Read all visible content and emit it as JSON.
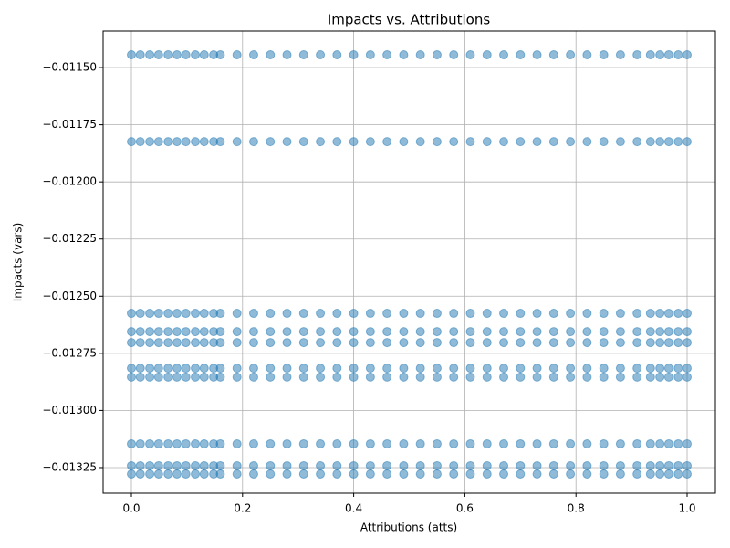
{
  "chart_data": {
    "type": "scatter",
    "title": "Impacts vs. Attributions",
    "x_label": "Attributions (atts)",
    "y_label": "Impacts (vars)",
    "color": "#1f77b4",
    "grid": true,
    "xlim": [
      -0.0509,
      1.0509
    ],
    "ylim": [
      -0.013362,
      -0.01134
    ],
    "xticks": [
      {
        "value": 0,
        "label": "0.0"
      },
      0.2,
      0.4,
      0.6,
      0.8,
      {
        "value": 1,
        "label": "1.0"
      }
    ],
    "yticks": [
      {
        "value": -0.0115,
        "label": "−0.01150"
      },
      {
        "value": -0.01175,
        "label": "−0.01175"
      },
      {
        "value": -0.012,
        "label": "−0.01200"
      },
      {
        "value": -0.01225,
        "label": "−0.01225"
      },
      {
        "value": -0.0125,
        "label": "−0.01250"
      },
      {
        "value": -0.01275,
        "label": "−0.01275"
      },
      {
        "value": -0.013,
        "label": "−0.01300"
      },
      {
        "value": -0.01325,
        "label": "−0.01325"
      }
    ],
    "x": [
      0,
      0.016,
      0.033,
      0.049,
      0.066,
      0.082,
      0.098,
      0.115,
      0.131,
      0.148,
      0.16,
      0.19,
      0.22,
      0.25,
      0.28,
      0.31,
      0.34,
      0.37,
      0.4,
      0.43,
      0.46,
      0.49,
      0.52,
      0.55,
      0.58,
      0.61,
      0.64,
      0.67,
      0.7,
      0.73,
      0.76,
      0.79,
      0.82,
      0.85,
      0.88,
      0.91,
      0.934,
      0.951,
      0.967,
      0.984,
      1
    ],
    "series": [
      {
        "values": [
          -0.011444,
          -0.011444,
          -0.011444,
          -0.011444,
          -0.011444,
          -0.011444,
          -0.011444,
          -0.011444,
          -0.011444,
          -0.011444,
          -0.011444,
          -0.011444,
          -0.011444,
          -0.011444,
          -0.011444,
          -0.011444,
          -0.011444,
          -0.011444,
          -0.011444,
          -0.011444,
          -0.011444,
          -0.011444,
          -0.011444,
          -0.011444,
          -0.011444,
          -0.011444,
          -0.011444,
          -0.011444,
          -0.011444,
          -0.011444,
          -0.011444,
          -0.011444,
          -0.011444,
          -0.011444,
          -0.011444,
          -0.011444,
          -0.011444,
          -0.011444,
          -0.011444,
          -0.011444,
          -0.011444
        ]
      },
      {
        "values": [
          -0.011824,
          -0.011824,
          -0.011824,
          -0.011824,
          -0.011824,
          -0.011824,
          -0.011824,
          -0.011824,
          -0.011824,
          -0.011824,
          -0.011824,
          -0.011824,
          -0.011824,
          -0.011824,
          -0.011824,
          -0.011824,
          -0.011824,
          -0.011824,
          -0.011824,
          -0.011824,
          -0.011824,
          -0.011824,
          -0.011824,
          -0.011824,
          -0.011824,
          -0.011824,
          -0.011824,
          -0.011824,
          -0.011824,
          -0.011824,
          -0.011824,
          -0.011824,
          -0.011824,
          -0.011824,
          -0.011824,
          -0.011824,
          -0.011824,
          -0.011824,
          -0.011824,
          -0.011824,
          -0.011824
        ]
      },
      {
        "values": [
          -0.012575,
          -0.012575,
          -0.012575,
          -0.012575,
          -0.012575,
          -0.012575,
          -0.012575,
          -0.012575,
          -0.012575,
          -0.012575,
          -0.012575,
          -0.012575,
          -0.012575,
          -0.012575,
          -0.012575,
          -0.012575,
          -0.012575,
          -0.012575,
          -0.012575,
          -0.012575,
          -0.012575,
          -0.012575,
          -0.012575,
          -0.012575,
          -0.012575,
          -0.012575,
          -0.012575,
          -0.012575,
          -0.012575,
          -0.012575,
          -0.012575,
          -0.012575,
          -0.012575,
          -0.012575,
          -0.012575,
          -0.012575,
          -0.012575,
          -0.012575,
          -0.012575,
          -0.012575,
          -0.012575
        ]
      },
      {
        "values": [
          -0.012655,
          -0.012655,
          -0.012655,
          -0.012655,
          -0.012655,
          -0.012655,
          -0.012655,
          -0.012655,
          -0.012655,
          -0.012655,
          -0.012655,
          -0.012655,
          -0.012655,
          -0.012655,
          -0.012655,
          -0.012655,
          -0.012655,
          -0.012655,
          -0.012655,
          -0.012655,
          -0.012655,
          -0.012655,
          -0.012655,
          -0.012655,
          -0.012655,
          -0.012655,
          -0.012655,
          -0.012655,
          -0.012655,
          -0.012655,
          -0.012655,
          -0.012655,
          -0.012655,
          -0.012655,
          -0.012655,
          -0.012655,
          -0.012655,
          -0.012655,
          -0.012655,
          -0.012655,
          -0.012655
        ]
      },
      {
        "values": [
          -0.012703,
          -0.012703,
          -0.012703,
          -0.012703,
          -0.012703,
          -0.012703,
          -0.012703,
          -0.012703,
          -0.012703,
          -0.012703,
          -0.012703,
          -0.012703,
          -0.012703,
          -0.012703,
          -0.012703,
          -0.012703,
          -0.012703,
          -0.012703,
          -0.012703,
          -0.012703,
          -0.012703,
          -0.012703,
          -0.012703,
          -0.012703,
          -0.012703,
          -0.012703,
          -0.012703,
          -0.012703,
          -0.012703,
          -0.012703,
          -0.012703,
          -0.012703,
          -0.012703,
          -0.012703,
          -0.012703,
          -0.012703,
          -0.012703,
          -0.012703,
          -0.012703,
          -0.012703,
          -0.012703
        ]
      },
      {
        "values": [
          -0.012815,
          -0.012815,
          -0.012815,
          -0.012815,
          -0.012815,
          -0.012815,
          -0.012815,
          -0.012815,
          -0.012815,
          -0.012815,
          -0.012815,
          -0.012815,
          -0.012815,
          -0.012815,
          -0.012815,
          -0.012815,
          -0.012815,
          -0.012815,
          -0.012815,
          -0.012815,
          -0.012815,
          -0.012815,
          -0.012815,
          -0.012815,
          -0.012815,
          -0.012815,
          -0.012815,
          -0.012815,
          -0.012815,
          -0.012815,
          -0.012815,
          -0.012815,
          -0.012815,
          -0.012815,
          -0.012815,
          -0.012815,
          -0.012815,
          -0.012815,
          -0.012815,
          -0.012815,
          -0.012815
        ]
      },
      {
        "values": [
          -0.012854,
          -0.012854,
          -0.012854,
          -0.012854,
          -0.012854,
          -0.012854,
          -0.012854,
          -0.012854,
          -0.012854,
          -0.012854,
          -0.012854,
          -0.012854,
          -0.012854,
          -0.012854,
          -0.012854,
          -0.012854,
          -0.012854,
          -0.012854,
          -0.012854,
          -0.012854,
          -0.012854,
          -0.012854,
          -0.012854,
          -0.012854,
          -0.012854,
          -0.012854,
          -0.012854,
          -0.012854,
          -0.012854,
          -0.012854,
          -0.012854,
          -0.012854,
          -0.012854,
          -0.012854,
          -0.012854,
          -0.012854,
          -0.012854,
          -0.012854,
          -0.012854,
          -0.012854,
          -0.012854
        ]
      },
      {
        "values": [
          -0.013146,
          -0.013146,
          -0.013146,
          -0.013146,
          -0.013146,
          -0.013146,
          -0.013146,
          -0.013146,
          -0.013146,
          -0.013146,
          -0.013146,
          -0.013146,
          -0.013146,
          -0.013146,
          -0.013146,
          -0.013146,
          -0.013146,
          -0.013146,
          -0.013146,
          -0.013146,
          -0.013146,
          -0.013146,
          -0.013146,
          -0.013146,
          -0.013146,
          -0.013146,
          -0.013146,
          -0.013146,
          -0.013146,
          -0.013146,
          -0.013146,
          -0.013146,
          -0.013146,
          -0.013146,
          -0.013146,
          -0.013146,
          -0.013146,
          -0.013146,
          -0.013146,
          -0.013146,
          -0.013146
        ]
      },
      {
        "values": [
          -0.013242,
          -0.013242,
          -0.013242,
          -0.013242,
          -0.013242,
          -0.013242,
          -0.013242,
          -0.013242,
          -0.013242,
          -0.013242,
          -0.013242,
          -0.013242,
          -0.013242,
          -0.013242,
          -0.013242,
          -0.013242,
          -0.013242,
          -0.013242,
          -0.013242,
          -0.013242,
          -0.013242,
          -0.013242,
          -0.013242,
          -0.013242,
          -0.013242,
          -0.013242,
          -0.013242,
          -0.013242,
          -0.013242,
          -0.013242,
          -0.013242,
          -0.013242,
          -0.013242,
          -0.013242,
          -0.013242,
          -0.013242,
          -0.013242,
          -0.013242,
          -0.013242,
          -0.013242,
          -0.013242
        ]
      },
      {
        "values": [
          -0.013278,
          -0.013278,
          -0.013278,
          -0.013278,
          -0.013278,
          -0.013278,
          -0.013278,
          -0.013278,
          -0.013278,
          -0.013278,
          -0.013278,
          -0.013278,
          -0.013278,
          -0.013278,
          -0.013278,
          -0.013278,
          -0.013278,
          -0.013278,
          -0.013278,
          -0.013278,
          -0.013278,
          -0.013278,
          -0.013278,
          -0.013278,
          -0.013278,
          -0.013278,
          -0.013278,
          -0.013278,
          -0.013278,
          -0.013278,
          -0.013278,
          -0.013278,
          -0.013278,
          -0.013278,
          -0.013278,
          -0.013278,
          -0.013278,
          -0.013278,
          -0.013278,
          -0.013278,
          -0.013278
        ]
      }
    ]
  }
}
